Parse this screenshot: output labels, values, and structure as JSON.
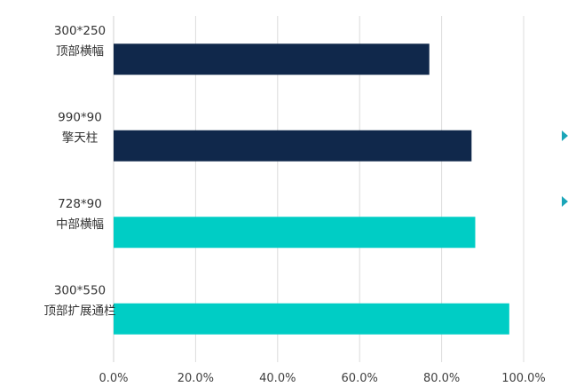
{
  "chart_data": {
    "type": "bar",
    "orientation": "horizontal",
    "categories": [
      [
        "300*250",
        "顶部横幅"
      ],
      [
        "990*90",
        "擎天柱"
      ],
      [
        "728*90",
        "中部横幅"
      ],
      [
        "300*550",
        "顶部扩展通栏"
      ]
    ],
    "values": [
      77.0,
      87.3,
      88.2,
      96.5
    ],
    "bar_colors": [
      "#10284b",
      "#10284b",
      "#00cdc5",
      "#00cdc5"
    ],
    "xlim": [
      0,
      100
    ],
    "xticks": [
      0,
      20,
      40,
      60,
      80,
      100
    ],
    "xtick_labels": [
      "0.0%",
      "20.0%",
      "40.0%",
      "60.0%",
      "80.0%",
      "100.0%"
    ],
    "grid": "vertical",
    "title": "",
    "xlabel": "",
    "ylabel": ""
  },
  "side_markers": {
    "count": 2,
    "color": "#1aa5b8",
    "icon": "triangle-right-icon"
  }
}
